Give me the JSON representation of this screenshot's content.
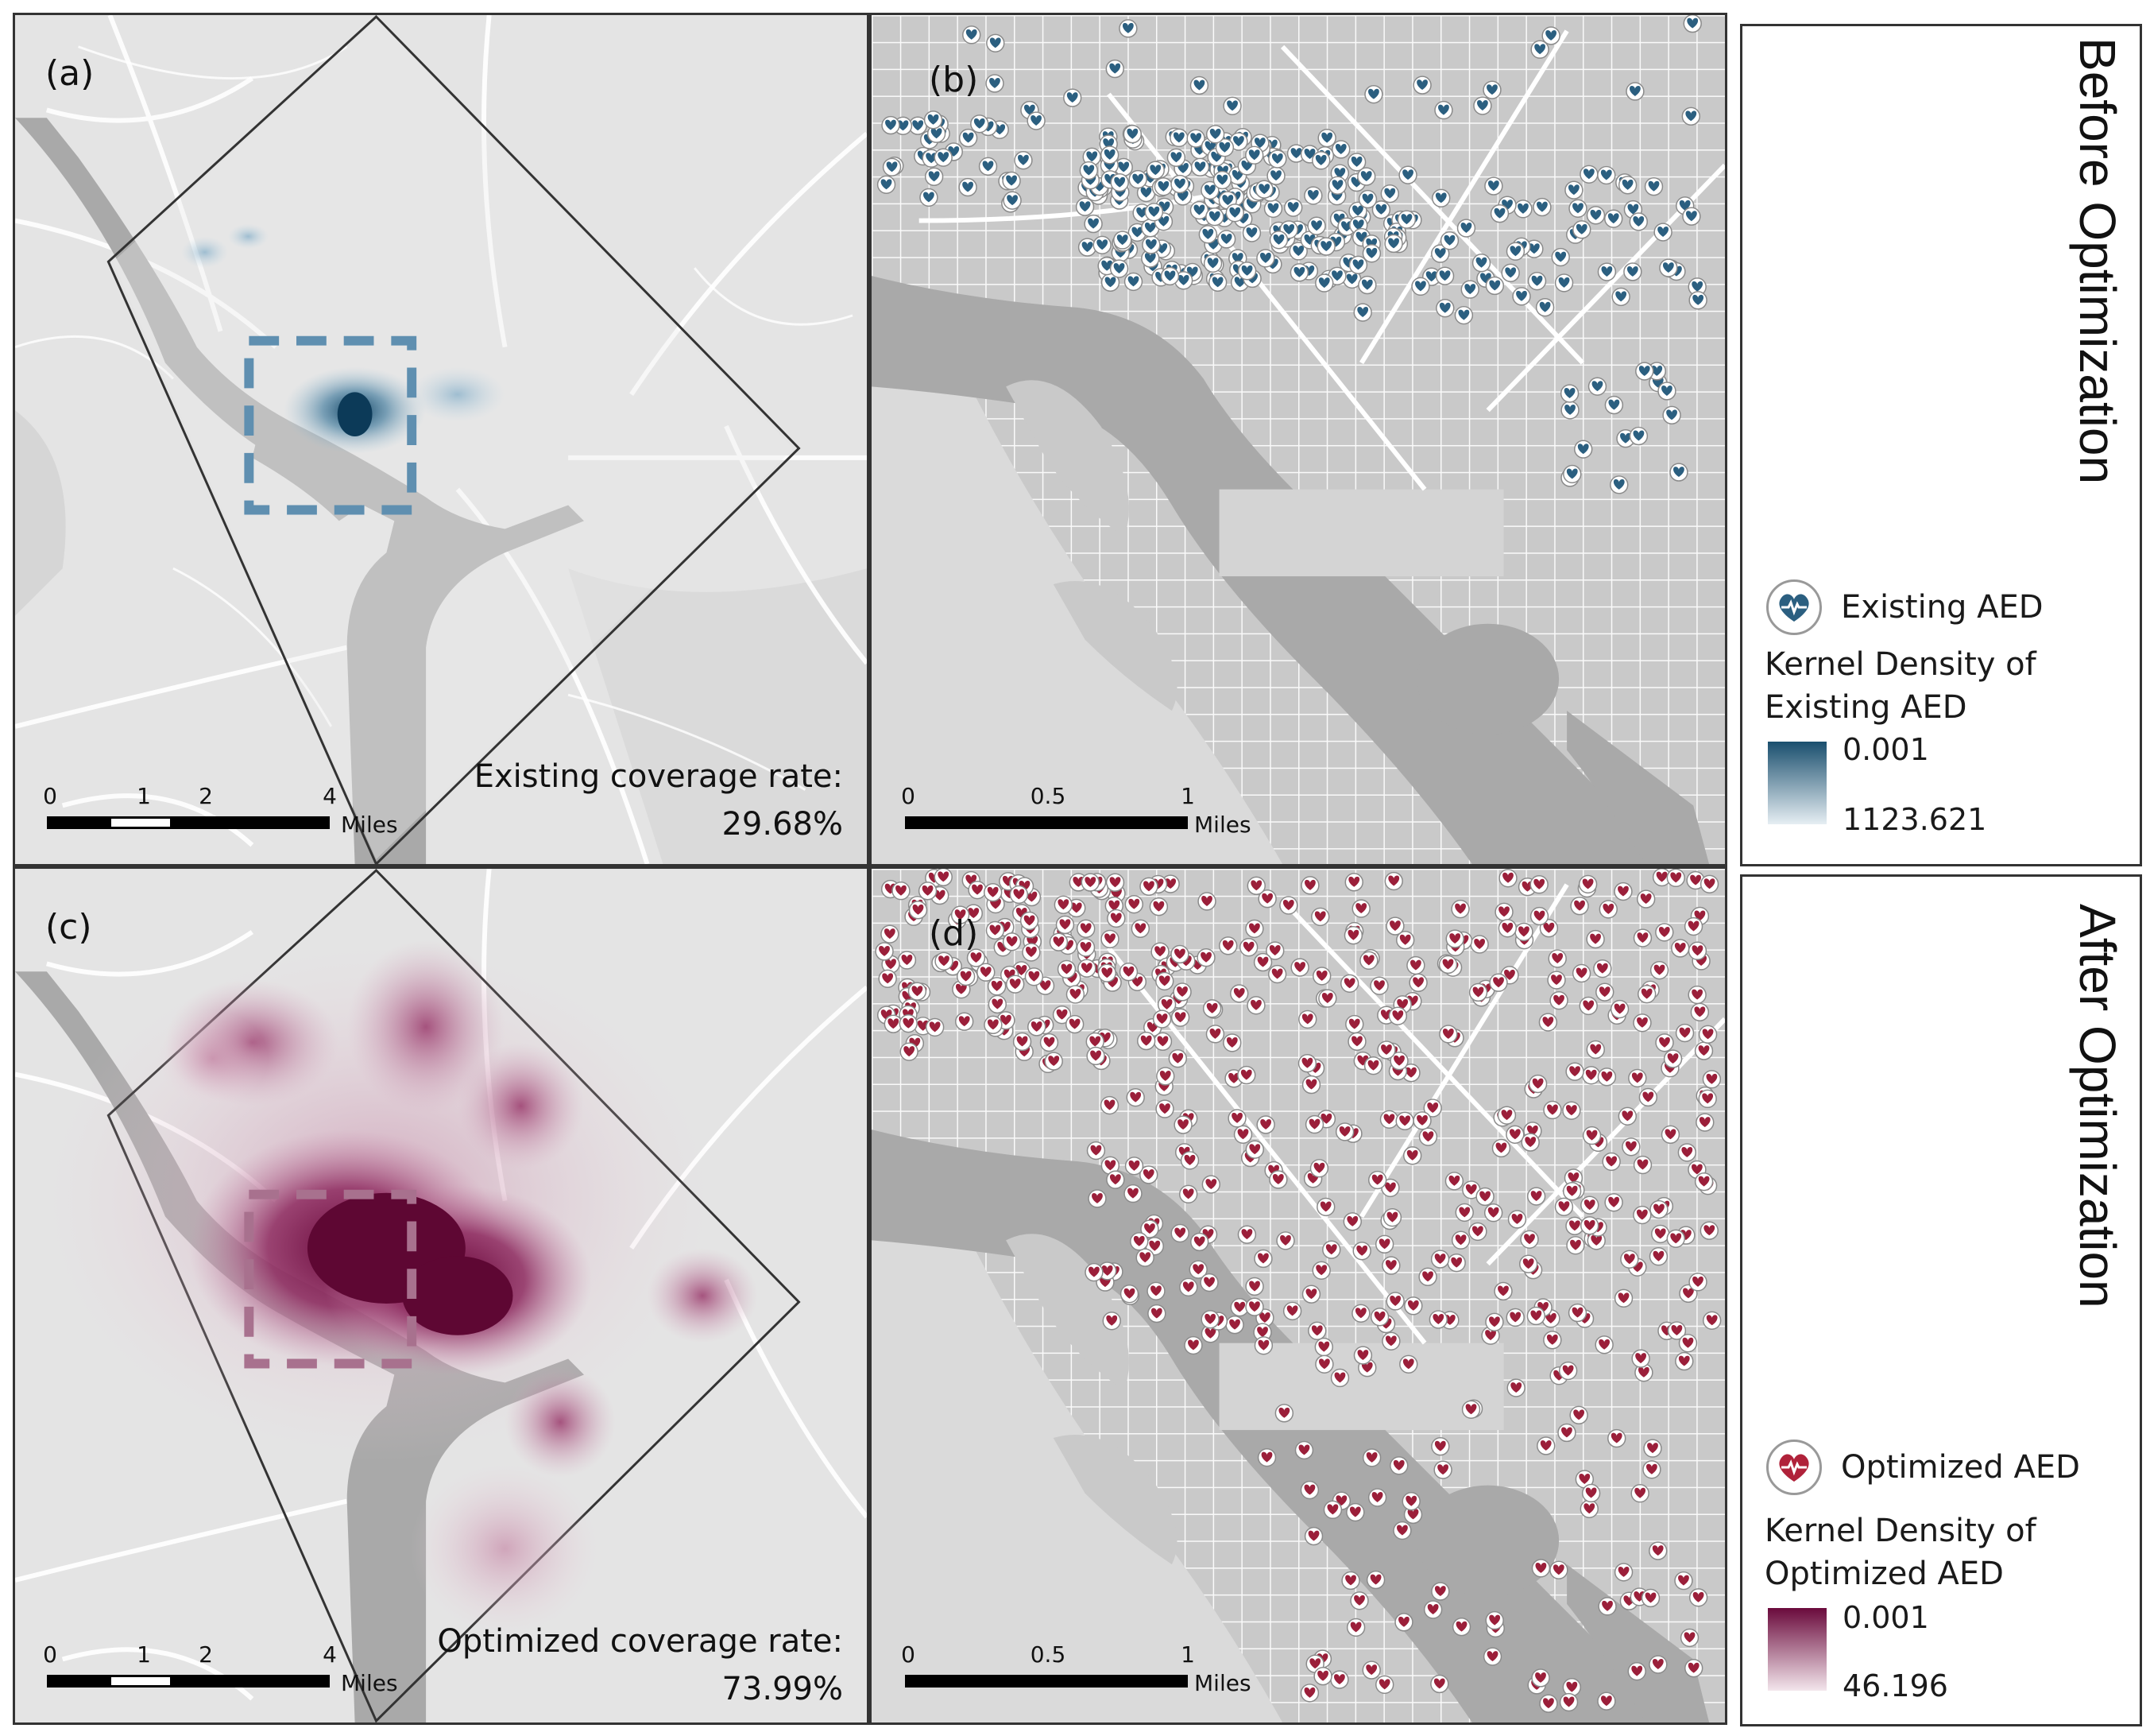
{
  "panels": {
    "a": {
      "label": "(a)",
      "coverage_label": "Existing coverage rate:",
      "coverage_value": "29.68%"
    },
    "b": {
      "label": "(b)"
    },
    "c": {
      "label": "(c)",
      "coverage_label": "Optimized coverage rate:",
      "coverage_value": "73.99%"
    },
    "d": {
      "label": "(d)"
    }
  },
  "scale_city": {
    "ticks": [
      "0",
      "1",
      "2",
      "4"
    ],
    "unit": "Miles"
  },
  "scale_zoom": {
    "ticks": [
      "0",
      "0.5",
      "1"
    ],
    "unit": "Miles"
  },
  "legend_before": {
    "title": "Before Optimization",
    "icon_label": "Existing AED",
    "kd_title": "Kernel Density of Existing AED",
    "ramp_high": "0.001",
    "ramp_low": "1123.621",
    "color": "#1f5a7a"
  },
  "legend_after": {
    "title": "After Optimization",
    "icon_label": "Optimized AED",
    "kd_title": "Kernel Density of Optimized AED",
    "ramp_high": "0.001",
    "ramp_low": "46.196",
    "color": "#7a1040"
  },
  "colors": {
    "existing_marker": "#2b5f80",
    "optimized_marker": "#9b1f3a",
    "river": "#a9a9a9",
    "land": "#e4e4e4",
    "roads": "#ffffff"
  }
}
